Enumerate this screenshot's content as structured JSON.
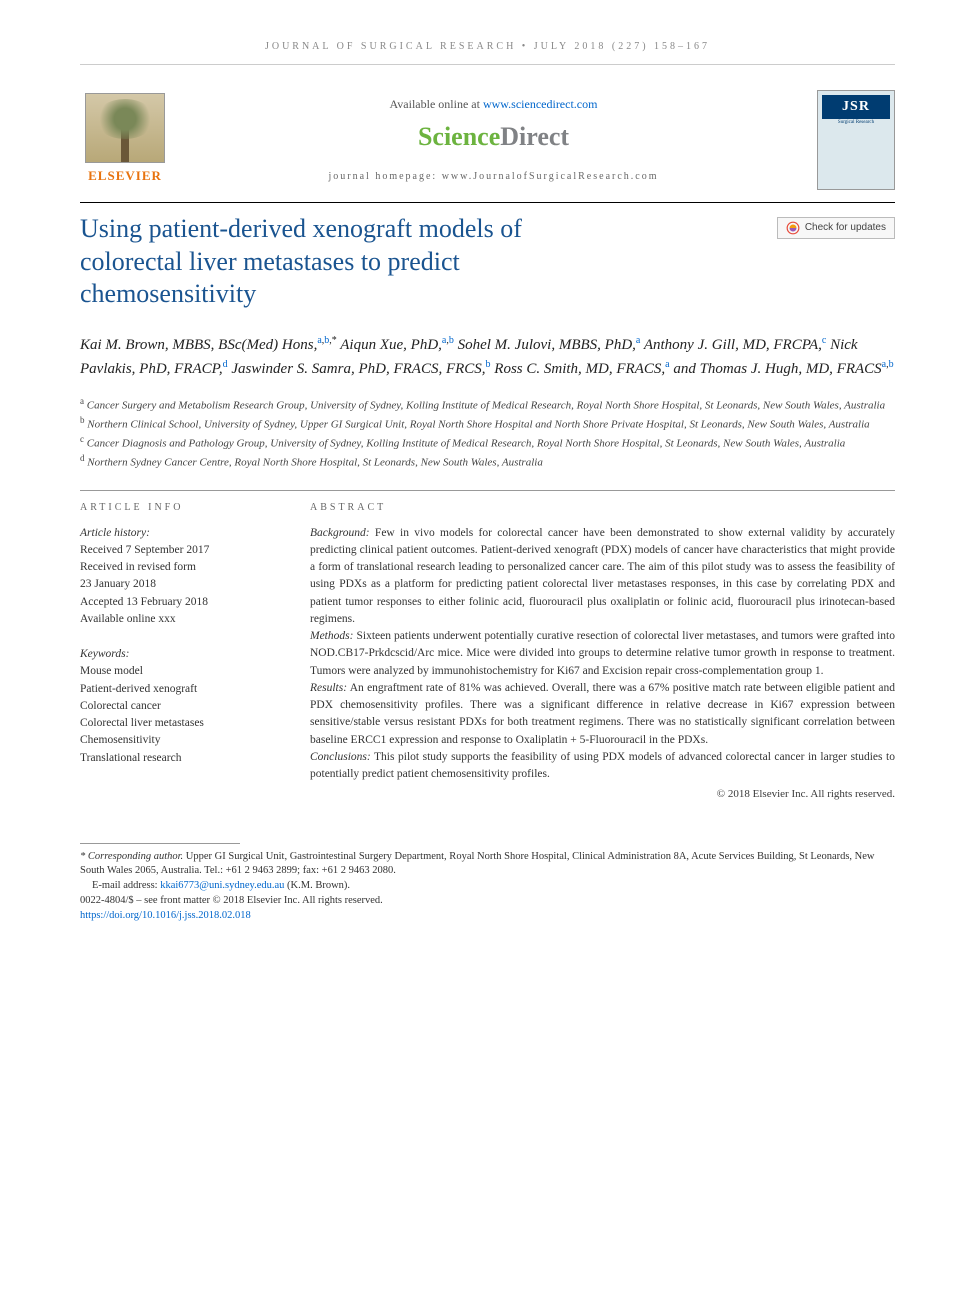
{
  "running_head": "JOURNAL OF SURGICAL RESEARCH • JULY 2018 (227) 158–167",
  "masthead": {
    "elsevier": "ELSEVIER",
    "available_text": "Available online at ",
    "available_url": "www.sciencedirect.com",
    "sd_science": "Science",
    "sd_direct": "Direct",
    "homepage_label": "journal homepage: ",
    "homepage_url": "www.JournalofSurgicalResearch.com",
    "jsr_label": "JSR",
    "jsr_sub": "Surgical Research"
  },
  "check_updates": "Check for updates",
  "title": "Using patient-derived xenograft models of colorectal liver metastases to predict chemosensitivity",
  "authors_html": "Kai M. Brown, MBBS, BSc(Med) Hons,<span class='sup'><a>a</a>,<a>b</a>,*</span> Aiqun Xue, PhD,<span class='sup'><a>a</a>,<a>b</a></span> Sohel M. Julovi, MBBS, PhD,<span class='sup'><a>a</a></span> Anthony J. Gill, MD, FRCPA,<span class='sup'><a>c</a></span> Nick Pavlakis, PhD, FRACP,<span class='sup'><a>d</a></span> Jaswinder S. Samra, PhD, FRACS, FRCS,<span class='sup'><a>b</a></span> Ross C. Smith, MD, FRACS,<span class='sup'><a>a</a></span> and Thomas J. Hugh, MD, FRACS<span class='sup'><a>a</a>,<a>b</a></span>",
  "affiliations": [
    {
      "sup": "a",
      "text": "Cancer Surgery and Metabolism Research Group, University of Sydney, Kolling Institute of Medical Research, Royal North Shore Hospital, St Leonards, New South Wales, Australia"
    },
    {
      "sup": "b",
      "text": "Northern Clinical School, University of Sydney, Upper GI Surgical Unit, Royal North Shore Hospital and North Shore Private Hospital, St Leonards, New South Wales, Australia"
    },
    {
      "sup": "c",
      "text": "Cancer Diagnosis and Pathology Group, University of Sydney, Kolling Institute of Medical Research, Royal North Shore Hospital, St Leonards, New South Wales, Australia"
    },
    {
      "sup": "d",
      "text": "Northern Sydney Cancer Centre, Royal North Shore Hospital, St Leonards, New South Wales, Australia"
    }
  ],
  "article_info": {
    "heading": "ARTICLE INFO",
    "history_label": "Article history:",
    "history": [
      "Received 7 September 2017",
      "Received in revised form",
      "23 January 2018",
      "Accepted 13 February 2018",
      "Available online xxx"
    ],
    "keywords_label": "Keywords:",
    "keywords": [
      "Mouse model",
      "Patient-derived xenograft",
      "Colorectal cancer",
      "Colorectal liver metastases",
      "Chemosensitivity",
      "Translational research"
    ]
  },
  "abstract": {
    "heading": "ABSTRACT",
    "background_label": "Background:",
    "background": "Few in vivo models for colorectal cancer have been demonstrated to show external validity by accurately predicting clinical patient outcomes. Patient-derived xenograft (PDX) models of cancer have characteristics that might provide a form of translational research leading to personalized cancer care. The aim of this pilot study was to assess the feasibility of using PDXs as a platform for predicting patient colorectal liver metastases responses, in this case by correlating PDX and patient tumor responses to either folinic acid, fluorouracil plus oxaliplatin or folinic acid, fluorouracil plus irinotecan-based regimens.",
    "methods_label": "Methods:",
    "methods": "Sixteen patients underwent potentially curative resection of colorectal liver metastases, and tumors were grafted into NOD.CB17-Prkdcscid/Arc mice. Mice were divided into groups to determine relative tumor growth in response to treatment. Tumors were analyzed by immunohistochemistry for Ki67 and Excision repair cross-complementation group 1.",
    "results_label": "Results:",
    "results": "An engraftment rate of 81% was achieved. Overall, there was a 67% positive match rate between eligible patient and PDX chemosensitivity profiles. There was a significant difference in relative decrease in Ki67 expression between sensitive/stable versus resistant PDXs for both treatment regimens. There was no statistically significant correlation between baseline ERCC1 expression and response to Oxaliplatin + 5-Fluorouracil in the PDXs.",
    "conclusions_label": "Conclusions:",
    "conclusions": "This pilot study supports the feasibility of using PDX models of advanced colorectal cancer in larger studies to potentially predict patient chemosensitivity profiles.",
    "copyright": "© 2018 Elsevier Inc. All rights reserved."
  },
  "footnotes": {
    "corr_label": "* Corresponding author.",
    "corr_text": "Upper GI Surgical Unit, Gastrointestinal Surgery Department, Royal North Shore Hospital, Clinical Administration 8A, Acute Services Building, St Leonards, New South Wales 2065, Australia. Tel.: +61 2 9463 2899; fax: +61 2 9463 2080.",
    "email_label": "E-mail address: ",
    "email": "kkai6773@uni.sydney.edu.au",
    "email_name": " (K.M. Brown).",
    "issn": "0022-4804/$ – see front matter © 2018 Elsevier Inc. All rights reserved.",
    "doi": "https://doi.org/10.1016/j.jss.2018.02.018"
  },
  "colors": {
    "title_blue": "#1a5490",
    "link_blue": "#0066cc",
    "elsevier_orange": "#e8730f",
    "sd_green": "#6cb33f",
    "sd_gray": "#808285",
    "jsr_navy": "#003c71"
  }
}
